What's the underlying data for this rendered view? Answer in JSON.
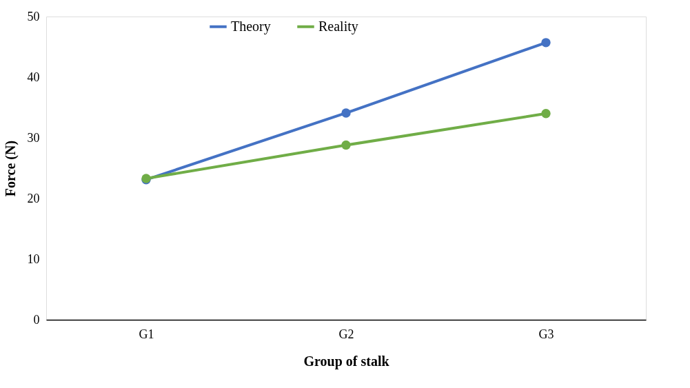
{
  "chart_data": {
    "type": "line",
    "xlabel": "Group of stalk",
    "ylabel": "Force (N)",
    "categories": [
      "G1",
      "G2",
      "G3"
    ],
    "series": [
      {
        "name": "Theory",
        "color": "#4472c4",
        "values": [
          23.1,
          34.1,
          45.7
        ]
      },
      {
        "name": "Reality",
        "color": "#70ad47",
        "values": [
          23.3,
          28.8,
          34.0
        ]
      }
    ],
    "ylim": [
      0,
      50
    ],
    "yticks": [
      0,
      10,
      20,
      30,
      40,
      50
    ],
    "grid": false,
    "legend": "top",
    "marker": "circle",
    "line_style": "solid"
  }
}
